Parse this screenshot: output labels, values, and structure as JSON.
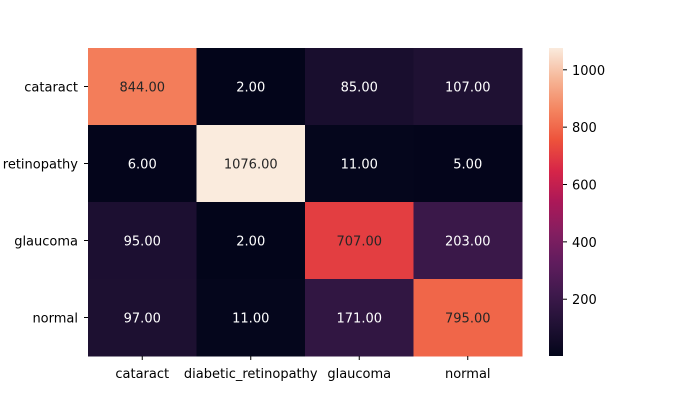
{
  "chart_data": {
    "type": "heatmap",
    "title": "",
    "xlabel": "",
    "ylabel": "",
    "x_categories": [
      "cataract",
      "diabetic_retinopathy",
      "glaucoma",
      "normal"
    ],
    "y_categories": [
      "cataract",
      "diabetic_retinopathy",
      "glaucoma",
      "normal"
    ],
    "y_tick_labels_visible": [
      "cataract",
      "retinopathy",
      "glaucoma",
      "normal"
    ],
    "values": [
      [
        844,
        2,
        85,
        107
      ],
      [
        6,
        1076,
        11,
        5
      ],
      [
        95,
        2,
        707,
        203
      ],
      [
        97,
        11,
        171,
        795
      ]
    ],
    "cell_labels": [
      [
        "844.00",
        "2.00",
        "85.00",
        "107.00"
      ],
      [
        "6.00",
        "1076.00",
        "11.00",
        "5.00"
      ],
      [
        "95.00",
        "2.00",
        "707.00",
        "203.00"
      ],
      [
        "97.00",
        "11.00",
        "171.00",
        "795.00"
      ]
    ],
    "colormap": "rocket",
    "colorbar": {
      "range": [
        2,
        1076
      ],
      "ticks": [
        200,
        400,
        600,
        800,
        1000
      ],
      "tick_labels": [
        "200",
        "400",
        "600",
        "800",
        "1000"
      ]
    },
    "grid": false
  }
}
